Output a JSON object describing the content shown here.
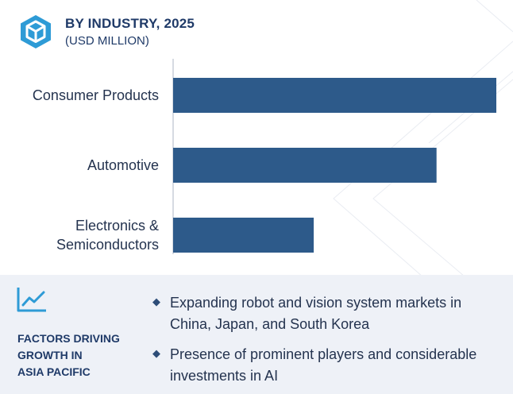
{
  "header": {
    "title": "BY INDUSTRY, 2025",
    "subtitle": "(USD MILLION)",
    "logo_icon": "hexagon-cube-icon"
  },
  "colors": {
    "bar": "#2d5a8a",
    "accent": "#1f3a68",
    "panel": "#eef1f7"
  },
  "chart_data": {
    "type": "bar",
    "orientation": "horizontal",
    "title": "BY INDUSTRY, 2025",
    "subtitle": "(USD MILLION)",
    "categories": [
      "Consumer Products",
      "Automotive",
      "Electronics & Semiconductors"
    ],
    "category_lines": [
      [
        "Consumer Products"
      ],
      [
        "Automotive"
      ],
      [
        "Electronics &",
        "Semiconductors"
      ]
    ],
    "values": [
      100,
      81.5,
      43.5
    ],
    "xlim": [
      0,
      100
    ],
    "value_axis_labels": "none",
    "grid": false,
    "legend": "none"
  },
  "factors": {
    "icon": "trend-chart-icon",
    "title": "FACTORS DRIVING\nGROWTH IN\nASIA PACIFIC",
    "bullets": [
      {
        "icon": "diamond-bullet-icon",
        "text": "Expanding robot and vision system markets in China, Japan, and South Korea"
      },
      {
        "icon": "diamond-bullet-icon",
        "text": "Presence of prominent players and considerable investments in AI"
      }
    ]
  }
}
